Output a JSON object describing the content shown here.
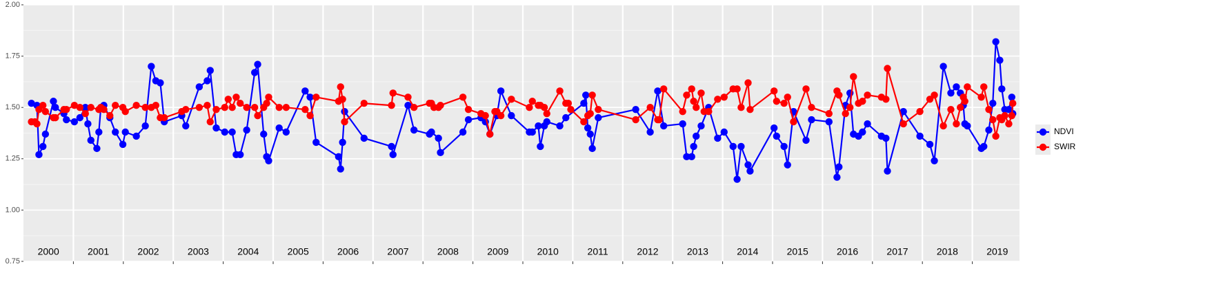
{
  "chart_data": {
    "type": "line",
    "year_labels": [
      "2000",
      "2001",
      "2002",
      "2003",
      "2004",
      "2005",
      "2006",
      "2007",
      "2008",
      "2009",
      "2010",
      "2011",
      "2012",
      "2013",
      "2014",
      "2015",
      "2016",
      "2017",
      "2018",
      "2019"
    ],
    "xlim": [
      2000,
      2020
    ],
    "ylim": [
      0.75,
      2.0
    ],
    "yticks": [
      0.75,
      {
        "value": 1,
        "label": "1.00"
      },
      1.25,
      {
        "value": 1.5,
        "label": "1.50"
      },
      1.75,
      {
        "value": 2,
        "label": "2.00"
      }
    ],
    "grid": true,
    "legend": "right",
    "series": [
      {
        "name": "NDVI",
        "color": "#0000ff",
        "x": [
          2000.16,
          2000.27,
          2000.31,
          2000.39,
          2000.44,
          2000.6,
          2000.64,
          2000.81,
          2000.86,
          2001.02,
          2001.13,
          2001.24,
          2001.29,
          2001.35,
          2001.47,
          2001.51,
          2001.55,
          2001.61,
          2001.73,
          2001.84,
          2001.99,
          2002.04,
          2002.26,
          2002.44,
          2002.56,
          2002.65,
          2002.74,
          2002.82,
          2003.17,
          2003.25,
          2003.52,
          2003.68,
          2003.74,
          2003.86,
          2004.03,
          2004.18,
          2004.26,
          2004.34,
          2004.47,
          2004.63,
          2004.69,
          2004.81,
          2004.87,
          2004.91,
          2005.12,
          2005.26,
          2005.64,
          2005.74,
          2005.86,
          2006.31,
          2006.35,
          2006.39,
          2006.43,
          2006.82,
          2007.37,
          2007.4,
          2007.7,
          2007.82,
          2008.13,
          2008.17,
          2008.31,
          2008.35,
          2008.8,
          2008.91,
          2009.16,
          2009.25,
          2009.34,
          2009.48,
          2009.56,
          2009.77,
          2010.13,
          2010.19,
          2010.31,
          2010.35,
          2010.43,
          2010.48,
          2010.74,
          2010.86,
          2011.22,
          2011.26,
          2011.3,
          2011.35,
          2011.39,
          2011.51,
          2012.26,
          2012.55,
          2012.7,
          2012.82,
          2013.2,
          2013.28,
          2013.38,
          2013.42,
          2013.47,
          2013.57,
          2013.72,
          2013.9,
          2014.03,
          2014.21,
          2014.29,
          2014.37,
          2014.51,
          2014.55,
          2015.03,
          2015.08,
          2015.23,
          2015.3,
          2015.42,
          2015.67,
          2015.78,
          2016.13,
          2016.29,
          2016.33,
          2016.46,
          2016.55,
          2016.62,
          2016.72,
          2016.8,
          2016.9,
          2017.18,
          2017.27,
          2017.3,
          2017.62,
          2017.95,
          2018.15,
          2018.24,
          2018.42,
          2018.57,
          2018.68,
          2018.76,
          2018.82,
          2018.85,
          2018.9,
          2019.18,
          2019.23,
          2019.33,
          2019.41,
          2019.47,
          2019.55,
          2019.59,
          2019.65,
          2019.73,
          2019.79,
          2019.81
        ],
        "values": [
          1.52,
          1.51,
          1.27,
          1.31,
          1.37,
          1.53,
          1.5,
          1.47,
          1.44,
          1.43,
          1.45,
          1.5,
          1.42,
          1.34,
          1.3,
          1.38,
          1.5,
          1.51,
          1.45,
          1.38,
          1.32,
          1.38,
          1.36,
          1.41,
          1.7,
          1.63,
          1.62,
          1.43,
          1.46,
          1.41,
          1.6,
          1.63,
          1.68,
          1.4,
          1.38,
          1.38,
          1.27,
          1.27,
          1.39,
          1.67,
          1.71,
          1.37,
          1.26,
          1.24,
          1.4,
          1.38,
          1.58,
          1.55,
          1.33,
          1.26,
          1.2,
          1.33,
          1.48,
          1.35,
          1.31,
          1.27,
          1.51,
          1.39,
          1.37,
          1.38,
          1.35,
          1.28,
          1.38,
          1.44,
          1.45,
          1.43,
          1.37,
          1.46,
          1.58,
          1.46,
          1.38,
          1.38,
          1.41,
          1.31,
          1.41,
          1.43,
          1.41,
          1.45,
          1.52,
          1.56,
          1.4,
          1.37,
          1.3,
          1.45,
          1.49,
          1.38,
          1.58,
          1.41,
          1.42,
          1.26,
          1.26,
          1.31,
          1.36,
          1.41,
          1.5,
          1.35,
          1.38,
          1.31,
          1.15,
          1.31,
          1.22,
          1.19,
          1.4,
          1.36,
          1.31,
          1.22,
          1.48,
          1.34,
          1.44,
          1.43,
          1.16,
          1.21,
          1.51,
          1.57,
          1.37,
          1.36,
          1.38,
          1.42,
          1.36,
          1.35,
          1.19,
          1.48,
          1.36,
          1.32,
          1.24,
          1.7,
          1.57,
          1.6,
          1.57,
          1.51,
          1.42,
          1.41,
          1.3,
          1.31,
          1.39,
          1.52,
          1.82,
          1.73,
          1.59,
          1.49,
          1.49,
          1.55,
          1.47
        ]
      },
      {
        "name": "SWIR",
        "color": "#ff0000",
        "x": [
          2000.16,
          2000.23,
          2000.27,
          2000.31,
          2000.39,
          2000.44,
          2000.6,
          2000.64,
          2000.81,
          2000.86,
          2001.02,
          2001.13,
          2001.24,
          2001.35,
          2001.51,
          2001.55,
          2001.61,
          2001.73,
          2001.84,
          2001.99,
          2002.04,
          2002.26,
          2002.44,
          2002.56,
          2002.65,
          2002.74,
          2002.82,
          2003.17,
          2003.25,
          2003.52,
          2003.68,
          2003.74,
          2003.86,
          2004.03,
          2004.1,
          2004.18,
          2004.26,
          2004.34,
          2004.47,
          2004.63,
          2004.69,
          2004.81,
          2004.87,
          2004.91,
          2005.12,
          2005.26,
          2005.64,
          2005.74,
          2005.86,
          2006.31,
          2006.35,
          2006.39,
          2006.43,
          2006.82,
          2007.37,
          2007.4,
          2007.7,
          2007.82,
          2008.13,
          2008.17,
          2008.22,
          2008.31,
          2008.35,
          2008.8,
          2008.91,
          2009.16,
          2009.25,
          2009.34,
          2009.44,
          2009.48,
          2009.56,
          2009.77,
          2010.13,
          2010.19,
          2010.31,
          2010.35,
          2010.43,
          2010.48,
          2010.74,
          2010.86,
          2010.91,
          2010.96,
          2011.22,
          2011.3,
          2011.35,
          2011.39,
          2011.51,
          2012.26,
          2012.55,
          2012.7,
          2012.73,
          2012.82,
          2013.2,
          2013.28,
          2013.38,
          2013.42,
          2013.47,
          2013.57,
          2013.63,
          2013.72,
          2013.9,
          2014.03,
          2014.21,
          2014.29,
          2014.37,
          2014.51,
          2014.55,
          2015.03,
          2015.08,
          2015.23,
          2015.3,
          2015.42,
          2015.67,
          2015.78,
          2016.13,
          2016.29,
          2016.33,
          2016.46,
          2016.55,
          2016.62,
          2016.72,
          2016.8,
          2016.9,
          2017.18,
          2017.27,
          2017.3,
          2017.62,
          2017.95,
          2018.15,
          2018.24,
          2018.42,
          2018.57,
          2018.68,
          2018.76,
          2018.82,
          2018.85,
          2018.9,
          2019.18,
          2019.23,
          2019.33,
          2019.41,
          2019.47,
          2019.55,
          2019.59,
          2019.65,
          2019.73,
          2019.79,
          2019.81
        ],
        "values": [
          1.43,
          1.43,
          1.42,
          1.49,
          1.51,
          1.48,
          1.45,
          1.45,
          1.49,
          1.49,
          1.51,
          1.5,
          1.47,
          1.5,
          1.49,
          1.5,
          1.49,
          1.46,
          1.51,
          1.5,
          1.48,
          1.51,
          1.5,
          1.5,
          1.51,
          1.45,
          1.45,
          1.48,
          1.49,
          1.5,
          1.51,
          1.43,
          1.49,
          1.5,
          1.54,
          1.5,
          1.55,
          1.52,
          1.5,
          1.5,
          1.46,
          1.5,
          1.52,
          1.55,
          1.5,
          1.5,
          1.49,
          1.46,
          1.55,
          1.53,
          1.6,
          1.54,
          1.43,
          1.52,
          1.51,
          1.57,
          1.55,
          1.5,
          1.52,
          1.52,
          1.5,
          1.5,
          1.51,
          1.55,
          1.49,
          1.47,
          1.46,
          1.37,
          1.48,
          1.48,
          1.46,
          1.54,
          1.5,
          1.53,
          1.51,
          1.51,
          1.5,
          1.47,
          1.58,
          1.52,
          1.52,
          1.49,
          1.43,
          1.46,
          1.47,
          1.56,
          1.49,
          1.44,
          1.5,
          1.44,
          1.44,
          1.59,
          1.48,
          1.56,
          1.59,
          1.53,
          1.5,
          1.57,
          1.48,
          1.48,
          1.54,
          1.55,
          1.59,
          1.59,
          1.5,
          1.62,
          1.49,
          1.58,
          1.53,
          1.52,
          1.55,
          1.43,
          1.59,
          1.5,
          1.47,
          1.58,
          1.56,
          1.47,
          1.5,
          1.65,
          1.52,
          1.53,
          1.56,
          1.55,
          1.54,
          1.69,
          1.42,
          1.48,
          1.54,
          1.56,
          1.41,
          1.49,
          1.42,
          1.5,
          1.55,
          1.53,
          1.6,
          1.55,
          1.6,
          1.49,
          1.44,
          1.36,
          1.45,
          1.44,
          1.46,
          1.42,
          1.46,
          1.52
        ]
      }
    ]
  }
}
